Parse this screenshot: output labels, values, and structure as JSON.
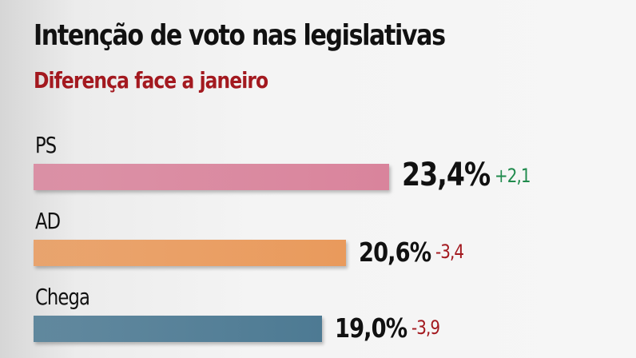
{
  "chart_data": {
    "type": "bar",
    "orientation": "horizontal",
    "title": "Intenção de voto nas legislativas",
    "subtitle": "Diferença face a janeiro",
    "categories": [
      "PS",
      "AD",
      "Chega"
    ],
    "values": [
      23.4,
      20.6,
      19.0
    ],
    "value_labels": [
      "23,4%",
      "20,6%",
      "19,0%"
    ],
    "change_labels": [
      "+2,1",
      "-3,4",
      "-3,9"
    ],
    "changes": [
      2.1,
      -3.4,
      -3.9
    ],
    "colors": [
      "#d9849c",
      "#e99a5c",
      "#4d7a93"
    ],
    "change_colors": {
      "positive": "#1f8a4c",
      "negative": "#a3191f"
    },
    "grid": false
  }
}
